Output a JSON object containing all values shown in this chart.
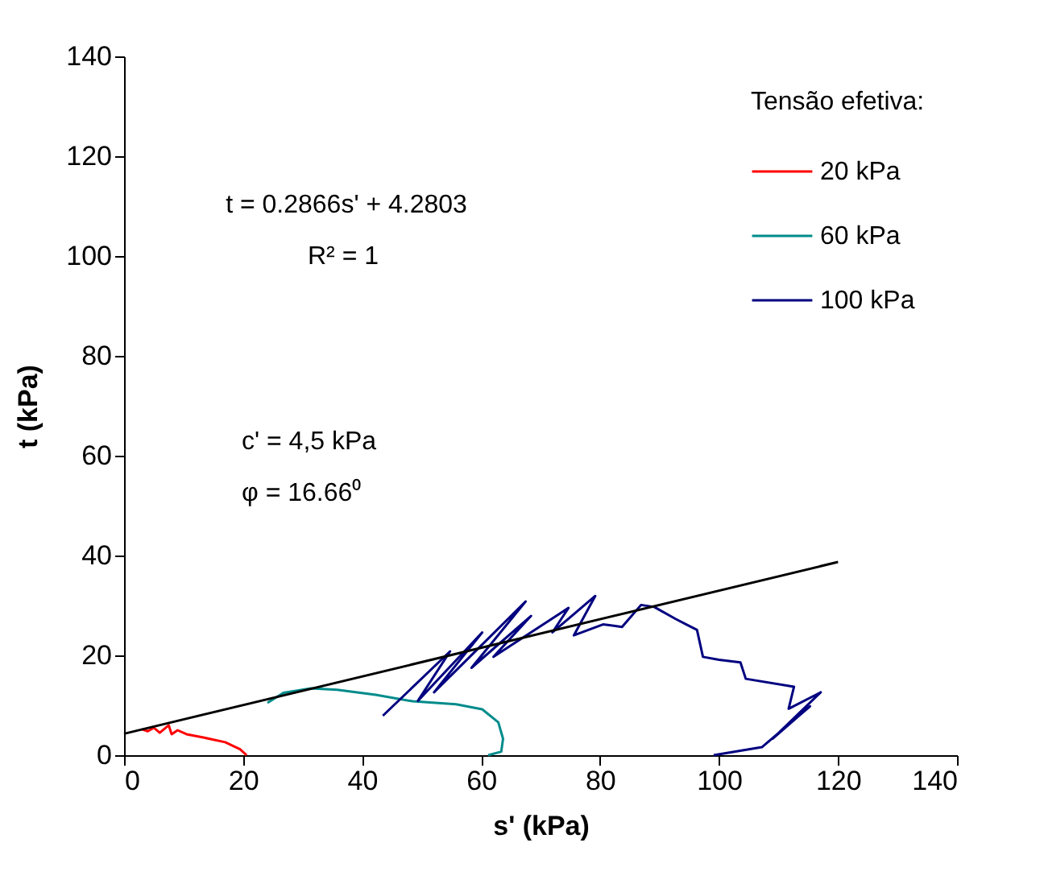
{
  "chart_data": {
    "type": "line",
    "xlabel": "s' (kPa)",
    "ylabel": "t (kPa)",
    "legend_title": "Tensão efetiva:",
    "legend": "top right",
    "grid": false,
    "xlim": [
      0,
      140
    ],
    "xticks": [
      0,
      20,
      40,
      60,
      80,
      100,
      120,
      140
    ],
    "ylim": [
      0,
      140
    ],
    "yticks": [
      0,
      20,
      40,
      60,
      80,
      100,
      120,
      140
    ],
    "annotations": [
      "t = 0.2866s' + 4.2803",
      "R² = 1",
      "c' = 4,5 kPa",
      "φ = 16.66⁰"
    ],
    "series": [
      {
        "name": "20 kPa",
        "color": "#ff0000",
        "x": [
          20.6,
          19.5,
          17,
          13.5,
          10.5,
          9,
          8,
          7.5,
          6,
          5,
          4,
          3
        ],
        "values": [
          0,
          1.2,
          2.6,
          3.5,
          4.2,
          5,
          4.2,
          6,
          4.5,
          5.5,
          4.8,
          5.2
        ]
      },
      {
        "name": "60 kPa",
        "color": "#008b8b",
        "x": [
          61.2,
          63.4,
          63.7,
          62.9,
          60.2,
          55.8,
          48.5,
          42.3,
          35.8,
          31.4,
          26.8,
          24.1
        ],
        "values": [
          0,
          0.7,
          3.3,
          6.6,
          9.2,
          10.2,
          10.8,
          12.1,
          13.1,
          13.4,
          12.5,
          10.5
        ]
      },
      {
        "name": "100 kPa",
        "color": "#000080",
        "x": [
          43.5,
          54.8,
          49.4,
          60.2,
          52.1,
          67.5,
          58.4,
          68.4,
          62.1,
          74.7,
          72,
          79.2,
          75.6,
          80.5,
          83.7,
          86.9,
          89.1,
          92.7,
          94.5,
          96.3,
          97.3,
          100,
          103.6,
          104.5,
          112.6,
          111.7,
          117.1,
          109,
          115.3,
          107.2,
          99.1
        ],
        "values": [
          7.9,
          20.8,
          10.9,
          24.6,
          12.6,
          30.8,
          17.5,
          27.9,
          19.7,
          29.5,
          24.6,
          31.9,
          24,
          26.2,
          25.7,
          30.1,
          29.7,
          27.3,
          26.2,
          25.1,
          19.7,
          19.1,
          18.6,
          15.3,
          13.7,
          9.3,
          12.6,
          3.3,
          9.8,
          1.6,
          0
        ]
      },
      {
        "color": "#000000",
        "x": [
          0,
          120
        ],
        "values": [
          4.3,
          38.7
        ]
      }
    ]
  }
}
